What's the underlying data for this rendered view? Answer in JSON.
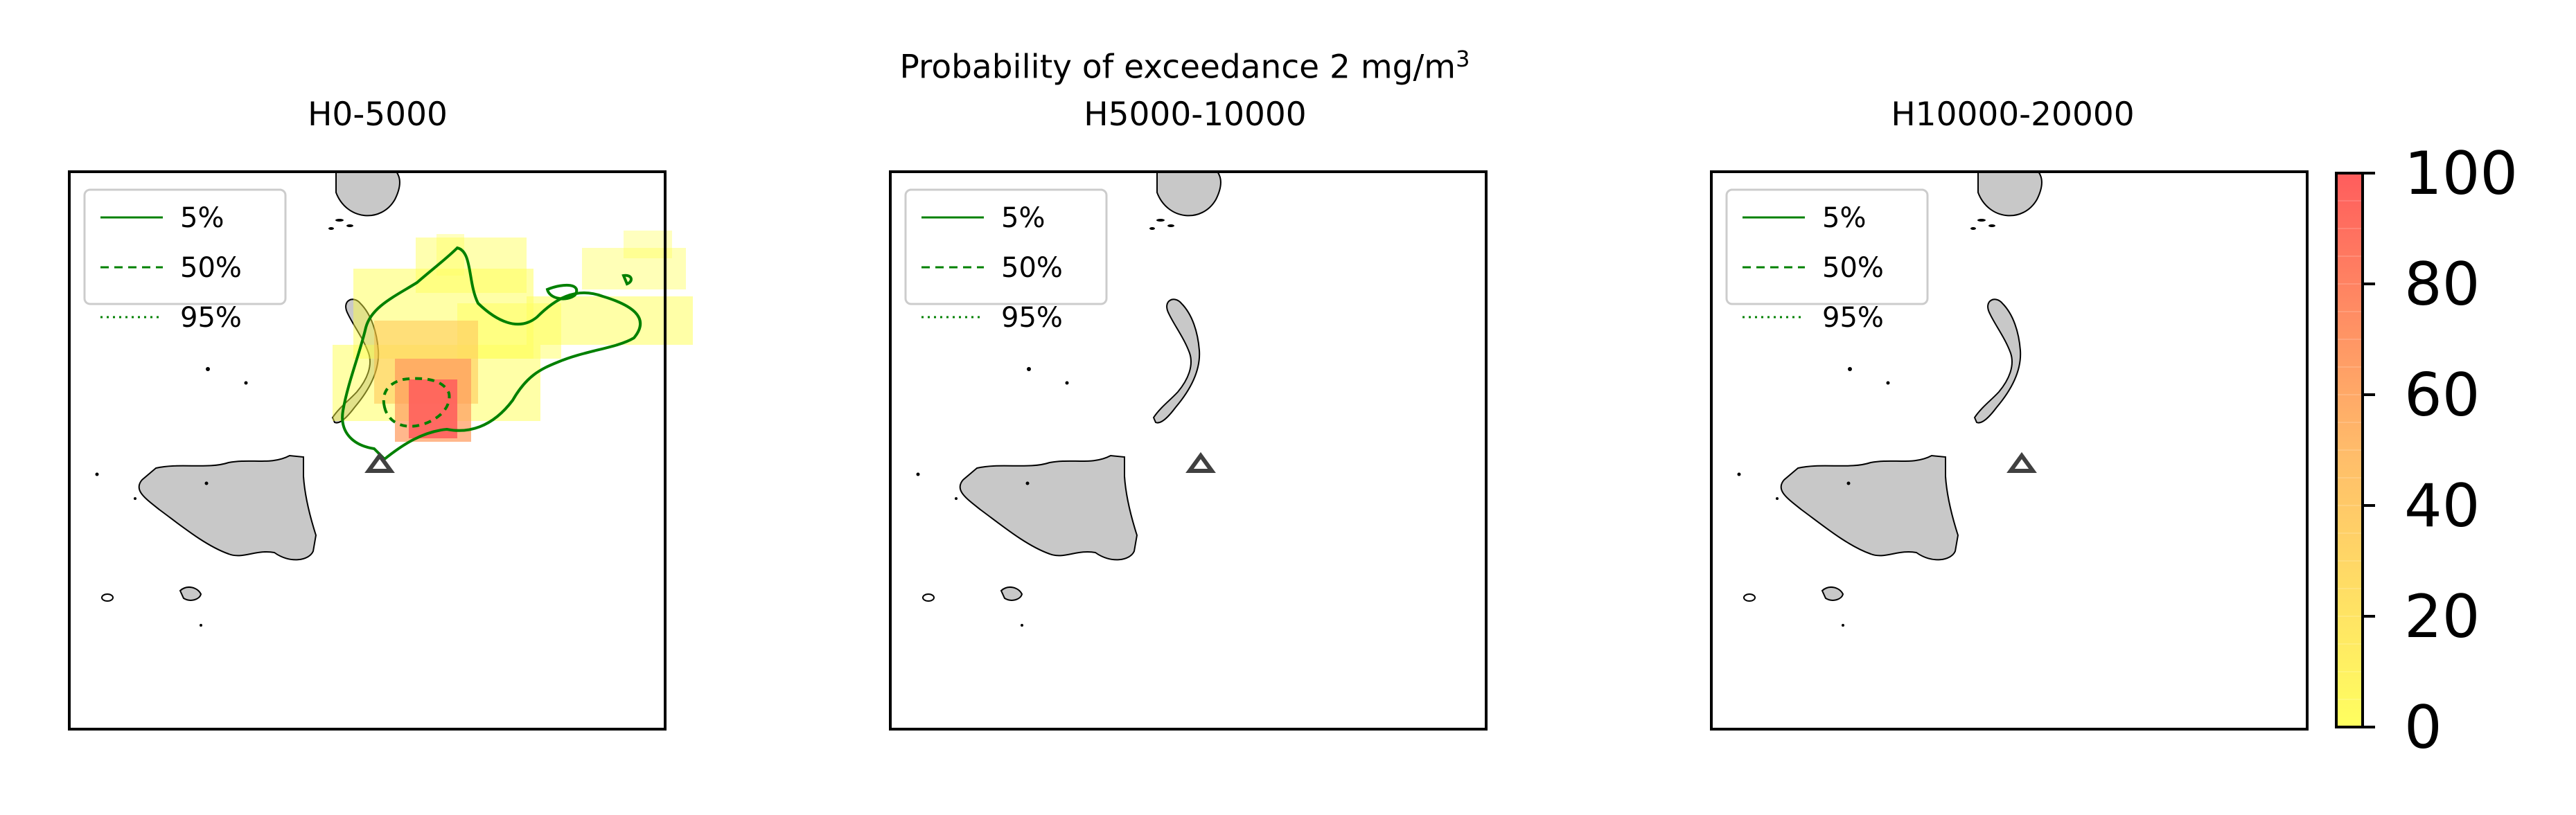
{
  "figure": {
    "title": "Probability of exceedance 2 mg/m",
    "title_superscript": "3"
  },
  "chart_data": [
    {
      "type": "heatmap",
      "title": "H0-5000",
      "legend": {
        "placement": "top-left",
        "entries": [
          {
            "label": "5%",
            "style": "solid"
          },
          {
            "label": "50%",
            "style": "dashed"
          },
          {
            "label": "95%",
            "style": "dotted"
          }
        ]
      },
      "has_plume": true,
      "vent_marker": "triangle"
    },
    {
      "type": "heatmap",
      "title": "H5000-10000",
      "legend": {
        "placement": "top-left",
        "entries": [
          {
            "label": "5%",
            "style": "solid"
          },
          {
            "label": "50%",
            "style": "dashed"
          },
          {
            "label": "95%",
            "style": "dotted"
          }
        ]
      },
      "has_plume": false,
      "vent_marker": "triangle"
    },
    {
      "type": "heatmap",
      "title": "H10000-20000",
      "legend": {
        "placement": "top-left",
        "entries": [
          {
            "label": "5%",
            "style": "solid"
          },
          {
            "label": "50%",
            "style": "dashed"
          },
          {
            "label": "95%",
            "style": "dotted"
          }
        ]
      },
      "has_plume": false,
      "vent_marker": "triangle"
    }
  ],
  "colorbar": {
    "ticks": [
      "0",
      "20",
      "40",
      "60",
      "80",
      "100"
    ],
    "range": [
      0,
      100
    ],
    "colors": {
      "low": "#ffff44",
      "mid": "#ffb050",
      "high": "#ff4040"
    }
  },
  "colors": {
    "land": "#c8c8c8",
    "contour": "#008000",
    "vent": "#404040"
  }
}
